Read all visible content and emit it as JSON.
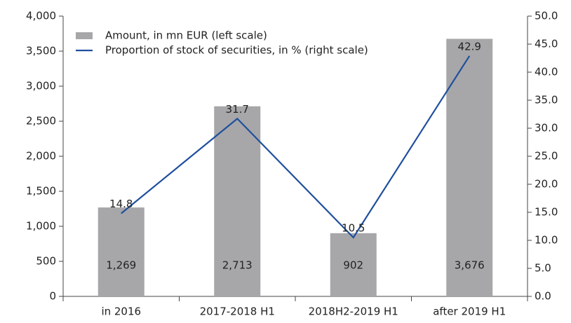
{
  "chart_data": {
    "type": "bar",
    "categories": [
      "in 2016",
      "2017-2018 H1",
      "2018H2-2019 H1",
      "after 2019 H1"
    ],
    "series": [
      {
        "name": "Amount, in mn EUR (left scale)",
        "type": "bar",
        "color": "#a7a7a9",
        "values": [
          1269,
          2713,
          902,
          3676
        ],
        "value_labels": [
          "1,269",
          "2,713",
          "902",
          "3,676"
        ]
      },
      {
        "name": "Proportion of stock of securities, in % (right scale)",
        "type": "line",
        "axis": "y2",
        "color": "#1f4f9e",
        "values": [
          14.8,
          31.7,
          10.5,
          42.9
        ]
      }
    ],
    "ylim": [
      0,
      4000
    ],
    "yticks": [
      0,
      500,
      {
        "value": 1000,
        "label": "1,000"
      },
      {
        "value": 1500,
        "label": "1,500"
      },
      {
        "value": 2000,
        "label": "2,000"
      },
      {
        "value": 2500,
        "label": "2,500"
      },
      {
        "value": 3000,
        "label": "3,000"
      },
      {
        "value": 3500,
        "label": "3,500"
      },
      {
        "value": 4000,
        "label": "4,000"
      }
    ],
    "y2lim": [
      0,
      50
    ],
    "y2ticks": [
      {
        "value": 0,
        "label": "0.0"
      },
      {
        "value": 5,
        "label": "5.0"
      },
      {
        "value": 10,
        "label": "10.0"
      },
      {
        "value": 15,
        "label": "15.0"
      },
      {
        "value": 20,
        "label": "20.0"
      },
      {
        "value": 25,
        "label": "25.0"
      },
      {
        "value": 30,
        "label": "30.0"
      },
      {
        "value": 35,
        "label": "35.0"
      },
      {
        "value": 40,
        "label": "40.0"
      },
      {
        "value": 45,
        "label": "45.0"
      },
      {
        "value": 50,
        "label": "50.0"
      }
    ],
    "legend": "top-left",
    "grid": false
  }
}
